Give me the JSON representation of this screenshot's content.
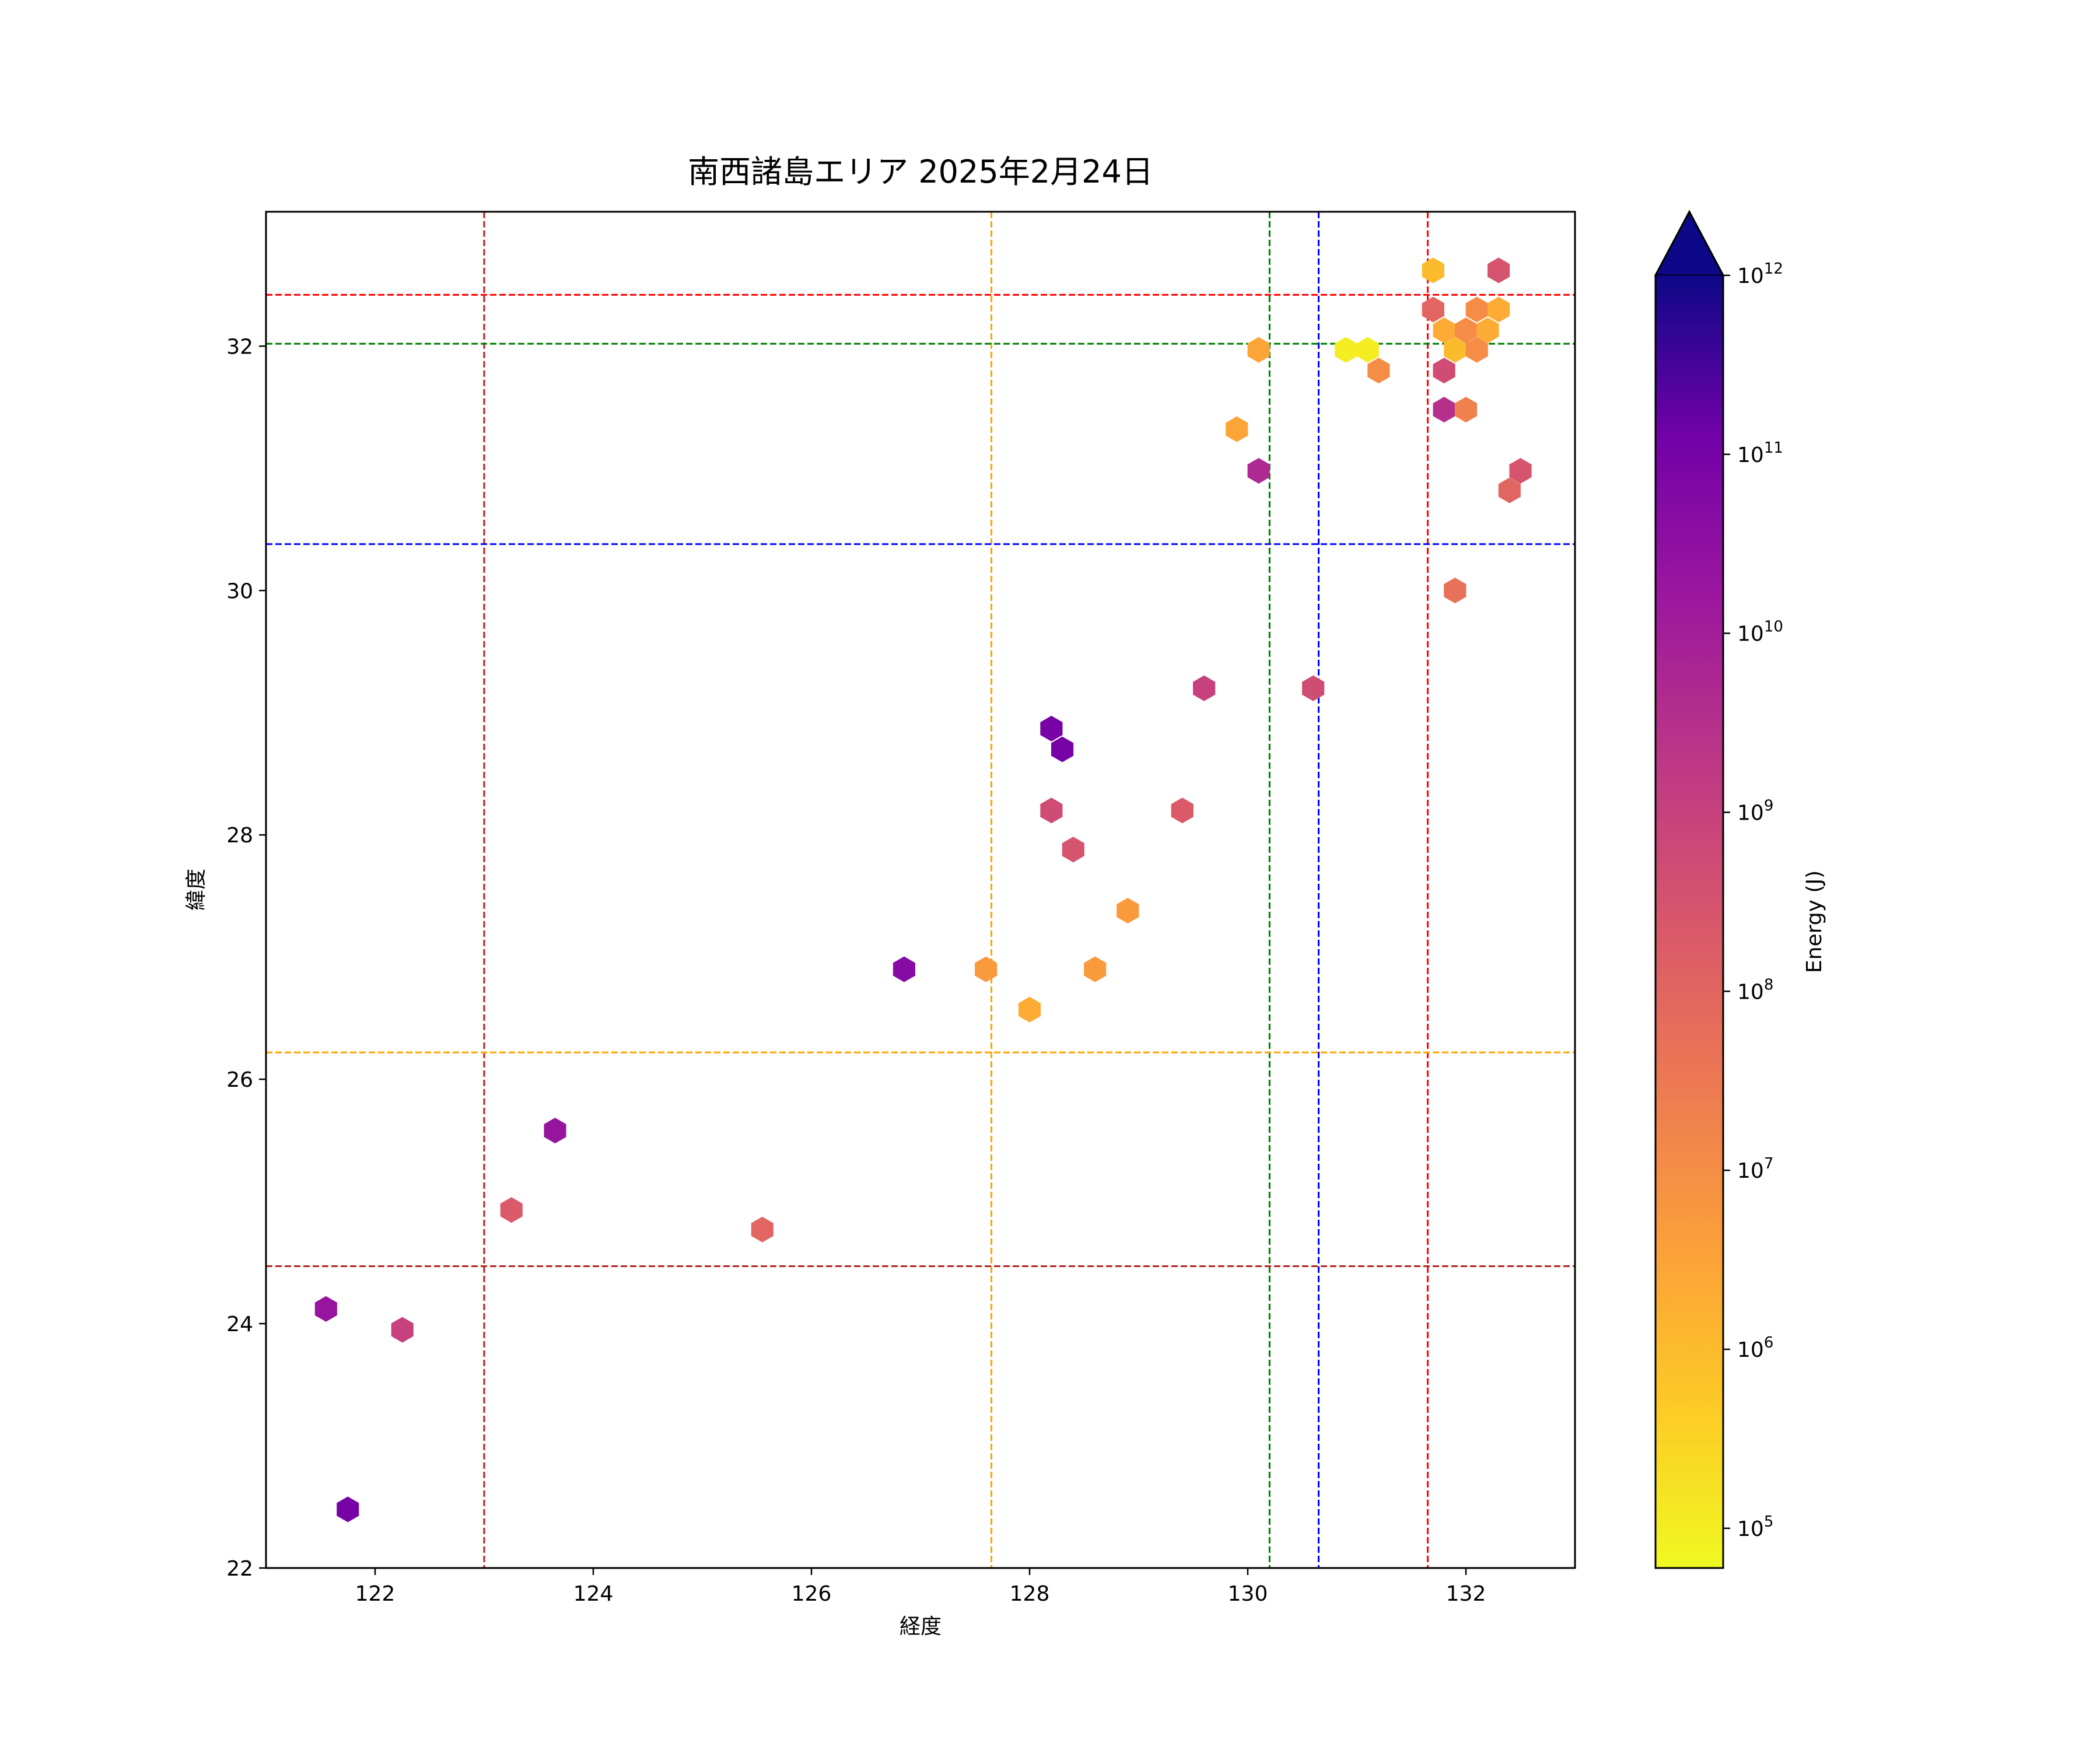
{
  "chart_data": {
    "type": "scatter",
    "marker": "hexagon",
    "title": "南西諸島エリア 2025年2月24日",
    "xlabel": "経度",
    "ylabel": "緯度",
    "xlim": [
      121.0,
      133.0
    ],
    "ylim": [
      22.0,
      33.1
    ],
    "xticks": [
      122,
      124,
      126,
      128,
      130,
      132
    ],
    "yticks": [
      22,
      24,
      26,
      28,
      30,
      32
    ],
    "grid": false,
    "colorbar": {
      "label": "Energy (J)",
      "scale": "log",
      "colormap": "plasma_r",
      "range": [
        60000,
        1000000000000.0
      ],
      "ticks": [
        {
          "exp": 5,
          "base": "10",
          "sup": "5"
        },
        {
          "exp": 6,
          "base": "10",
          "sup": "6"
        },
        {
          "exp": 7,
          "base": "10",
          "sup": "7"
        },
        {
          "exp": 8,
          "base": "10",
          "sup": "8"
        },
        {
          "exp": 9,
          "base": "10",
          "sup": "9"
        },
        {
          "exp": 10,
          "base": "10",
          "sup": "10"
        },
        {
          "exp": 11,
          "base": "10",
          "sup": "11"
        },
        {
          "exp": 12,
          "base": "10",
          "sup": "12"
        }
      ],
      "extend": "max"
    },
    "reference_lines": [
      {
        "orientation": "vertical",
        "value": 123.0,
        "color": "#b22222"
      },
      {
        "orientation": "vertical",
        "value": 127.65,
        "color": "#ffa500"
      },
      {
        "orientation": "vertical",
        "value": 130.2,
        "color": "#008000"
      },
      {
        "orientation": "vertical",
        "value": 130.65,
        "color": "#0000ff"
      },
      {
        "orientation": "vertical",
        "value": 131.65,
        "color": "#ff0000"
      },
      {
        "orientation": "horizontal",
        "value": 32.42,
        "color": "#ff0000"
      },
      {
        "orientation": "horizontal",
        "value": 32.02,
        "color": "#008000"
      },
      {
        "orientation": "horizontal",
        "value": 30.38,
        "color": "#0000ff"
      },
      {
        "orientation": "horizontal",
        "value": 26.22,
        "color": "#ffa500"
      },
      {
        "orientation": "horizontal",
        "value": 24.47,
        "color": "#b22222"
      }
    ],
    "points": [
      {
        "x": 121.55,
        "y": 24.12,
        "energy": 20000000000.0
      },
      {
        "x": 121.75,
        "y": 22.48,
        "energy": 100000000000.0
      },
      {
        "x": 122.25,
        "y": 23.95,
        "energy": 1000000000.0
      },
      {
        "x": 123.25,
        "y": 24.93,
        "energy": 200000000.0
      },
      {
        "x": 123.65,
        "y": 25.58,
        "energy": 20000000000.0
      },
      {
        "x": 125.55,
        "y": 24.77,
        "energy": 100000000.0
      },
      {
        "x": 126.85,
        "y": 26.9,
        "energy": 50000000000.0
      },
      {
        "x": 127.6,
        "y": 26.9,
        "energy": 5000000.0
      },
      {
        "x": 128.0,
        "y": 26.57,
        "energy": 2000000.0
      },
      {
        "x": 128.6,
        "y": 26.9,
        "energy": 5000000.0
      },
      {
        "x": 128.9,
        "y": 27.38,
        "energy": 5000000.0
      },
      {
        "x": 128.2,
        "y": 28.87,
        "energy": 100000000000.0
      },
      {
        "x": 128.3,
        "y": 28.7,
        "energy": 100000000000.0
      },
      {
        "x": 128.2,
        "y": 28.2,
        "energy": 500000000.0
      },
      {
        "x": 128.4,
        "y": 27.88,
        "energy": 300000000.0
      },
      {
        "x": 129.4,
        "y": 28.2,
        "energy": 200000000.0
      },
      {
        "x": 129.6,
        "y": 29.2,
        "energy": 1000000000.0
      },
      {
        "x": 130.6,
        "y": 29.2,
        "energy": 500000000.0
      },
      {
        "x": 129.9,
        "y": 31.32,
        "energy": 3000000.0
      },
      {
        "x": 130.1,
        "y": 30.98,
        "energy": 5000000000.0
      },
      {
        "x": 130.1,
        "y": 31.97,
        "energy": 3000000.0
      },
      {
        "x": 130.9,
        "y": 31.97,
        "energy": 100000.0
      },
      {
        "x": 131.1,
        "y": 31.97,
        "energy": 100000.0
      },
      {
        "x": 131.2,
        "y": 31.8,
        "energy": 10000000.0
      },
      {
        "x": 131.7,
        "y": 32.62,
        "energy": 1000000.0
      },
      {
        "x": 131.7,
        "y": 32.3,
        "energy": 100000000.0
      },
      {
        "x": 131.8,
        "y": 32.13,
        "energy": 2000000.0
      },
      {
        "x": 131.9,
        "y": 31.97,
        "energy": 1000000.0
      },
      {
        "x": 132.0,
        "y": 32.13,
        "energy": 10000000.0
      },
      {
        "x": 132.1,
        "y": 32.3,
        "energy": 10000000.0
      },
      {
        "x": 132.1,
        "y": 31.97,
        "energy": 10000000.0
      },
      {
        "x": 132.2,
        "y": 32.13,
        "energy": 2000000.0
      },
      {
        "x": 132.3,
        "y": 32.3,
        "energy": 2000000.0
      },
      {
        "x": 132.3,
        "y": 32.62,
        "energy": 300000000.0
      },
      {
        "x": 131.8,
        "y": 31.8,
        "energy": 500000000.0
      },
      {
        "x": 131.8,
        "y": 31.48,
        "energy": 3000000000.0
      },
      {
        "x": 132.0,
        "y": 31.48,
        "energy": 20000000.0
      },
      {
        "x": 132.5,
        "y": 30.98,
        "energy": 300000000.0
      },
      {
        "x": 132.4,
        "y": 30.82,
        "energy": 100000000.0
      },
      {
        "x": 131.9,
        "y": 30.0,
        "energy": 50000000.0
      }
    ]
  }
}
